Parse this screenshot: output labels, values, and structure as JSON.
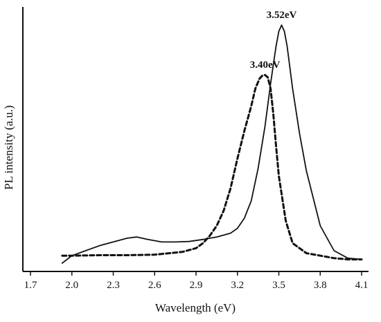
{
  "chart_data": {
    "type": "line",
    "title": "",
    "xlabel": "Wavelength (eV)",
    "ylabel": "PL intensity (a.u.)",
    "xlim": [
      1.7,
      4.15
    ],
    "ylim": [
      0,
      1.0
    ],
    "x_ticks": [
      "1.7",
      "2.0",
      "2.3",
      "2.6",
      "2.9",
      "3.2",
      "3.5",
      "3.8",
      "4.1"
    ],
    "y_ticks_shown": false,
    "grid": false,
    "legend": null,
    "annotations": [
      {
        "text": "3.52eV",
        "x": 3.52,
        "y": 0.955
      },
      {
        "text": "3.40eV",
        "x": 3.4,
        "y": 0.755
      }
    ],
    "series": [
      {
        "style": "solid",
        "x": [
          1.93,
          2.0,
          2.1,
          2.2,
          2.3,
          2.4,
          2.47,
          2.55,
          2.65,
          2.75,
          2.85,
          2.95,
          3.05,
          3.15,
          3.2,
          3.25,
          3.3,
          3.35,
          3.4,
          3.44,
          3.48,
          3.5,
          3.52,
          3.54,
          3.56,
          3.6,
          3.65,
          3.7,
          3.8,
          3.9,
          4.0,
          4.1
        ],
        "y": [
          0.0,
          0.03,
          0.05,
          0.07,
          0.085,
          0.1,
          0.105,
          0.095,
          0.085,
          0.085,
          0.087,
          0.095,
          0.105,
          0.12,
          0.14,
          0.18,
          0.25,
          0.38,
          0.55,
          0.72,
          0.87,
          0.93,
          0.955,
          0.93,
          0.87,
          0.7,
          0.52,
          0.37,
          0.15,
          0.05,
          0.02,
          0.015
        ]
      },
      {
        "style": "dashed",
        "x": [
          1.93,
          2.0,
          2.2,
          2.4,
          2.6,
          2.8,
          2.9,
          2.95,
          3.0,
          3.05,
          3.1,
          3.15,
          3.2,
          3.25,
          3.3,
          3.33,
          3.36,
          3.38,
          3.4,
          3.42,
          3.44,
          3.46,
          3.48,
          3.5,
          3.55,
          3.6,
          3.7,
          3.8,
          3.9,
          4.0,
          4.1
        ],
        "y": [
          0.03,
          0.03,
          0.032,
          0.032,
          0.034,
          0.045,
          0.06,
          0.08,
          0.11,
          0.15,
          0.21,
          0.3,
          0.42,
          0.53,
          0.63,
          0.7,
          0.74,
          0.752,
          0.755,
          0.745,
          0.7,
          0.6,
          0.47,
          0.35,
          0.17,
          0.08,
          0.04,
          0.03,
          0.02,
          0.015,
          0.015
        ]
      }
    ]
  }
}
